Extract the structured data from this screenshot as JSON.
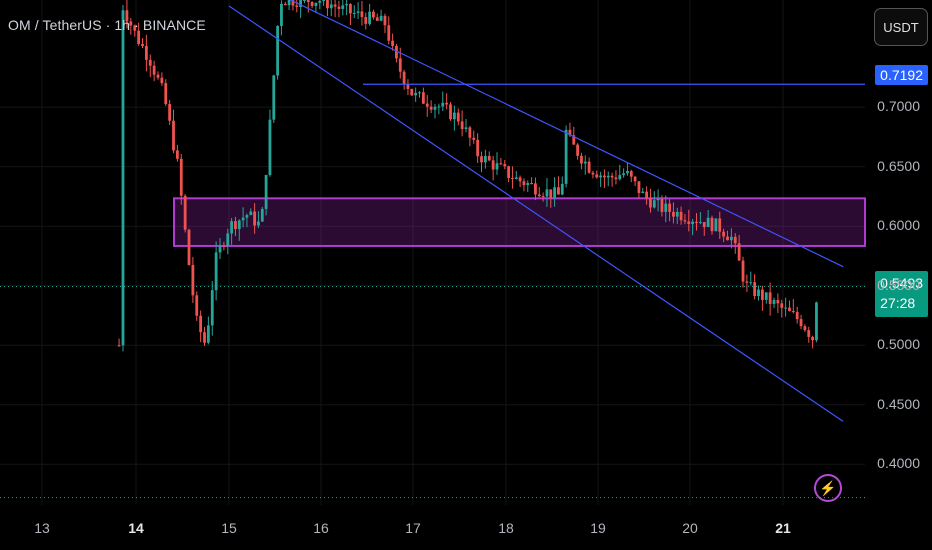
{
  "header": {
    "symbol": "OM / TetherUS · 1h · BINANCE"
  },
  "currency_button": "USDT",
  "colors": {
    "up": "#26a69a",
    "down": "#ef5350",
    "line": "#3f55ff",
    "zone": "#b23ad3",
    "background": "#000000"
  },
  "tags": {
    "resistance_price": "0.7192",
    "current_price": "0.5493",
    "countdown": "27:28"
  },
  "icons": {
    "alert": "lightning-icon"
  },
  "chart_data": {
    "type": "candlestick",
    "title": "",
    "xlabel": "",
    "ylabel": "",
    "x_ticks": [
      "13",
      "14",
      "15",
      "16",
      "17",
      "18",
      "19",
      "20",
      "21"
    ],
    "y_ticks": [
      "0.7000",
      "0.6500",
      "0.6000",
      "0.5500",
      "0.5000",
      "0.4500",
      "0.4000"
    ],
    "ylim": [
      0.37,
      0.79
    ],
    "horizontal_line": 0.7192,
    "zone": [
      0.5834,
      0.6234
    ],
    "channel": {
      "upper": [
        {
          "day": 15.0,
          "price": 0.815
        },
        {
          "day": 21.65,
          "price": 0.566
        }
      ],
      "lower": [
        {
          "day": 15.0,
          "price": 0.785
        },
        {
          "day": 21.65,
          "price": 0.436
        }
      ]
    },
    "last_price": 0.5493,
    "price_path": [
      [
        13.82,
        0.5
      ],
      [
        13.83,
        0.79
      ],
      [
        14.0,
        0.76
      ],
      [
        14.15,
        0.74
      ],
      [
        14.3,
        0.71
      ],
      [
        14.45,
        0.65
      ],
      [
        14.55,
        0.58
      ],
      [
        14.65,
        0.52
      ],
      [
        14.75,
        0.5
      ],
      [
        14.85,
        0.57
      ],
      [
        15.0,
        0.6
      ],
      [
        15.2,
        0.61
      ],
      [
        15.35,
        0.6
      ],
      [
        15.45,
        0.69
      ],
      [
        15.55,
        0.79
      ],
      [
        16.0,
        0.79
      ],
      [
        16.3,
        0.78
      ],
      [
        16.7,
        0.77
      ],
      [
        16.8,
        0.74
      ],
      [
        17.0,
        0.71
      ],
      [
        17.3,
        0.7
      ],
      [
        17.5,
        0.69
      ],
      [
        17.7,
        0.66
      ],
      [
        17.9,
        0.65
      ],
      [
        18.1,
        0.64
      ],
      [
        18.4,
        0.63
      ],
      [
        18.6,
        0.625
      ],
      [
        18.65,
        0.68
      ],
      [
        18.7,
        0.67
      ],
      [
        18.9,
        0.65
      ],
      [
        19.1,
        0.64
      ],
      [
        19.3,
        0.645
      ],
      [
        19.5,
        0.625
      ],
      [
        19.7,
        0.615
      ],
      [
        19.9,
        0.61
      ],
      [
        20.1,
        0.605
      ],
      [
        20.3,
        0.6
      ],
      [
        20.45,
        0.59
      ],
      [
        20.6,
        0.55
      ],
      [
        20.8,
        0.54
      ],
      [
        21.0,
        0.53
      ],
      [
        21.2,
        0.52
      ],
      [
        21.33,
        0.505
      ],
      [
        21.37,
        0.549
      ]
    ]
  }
}
